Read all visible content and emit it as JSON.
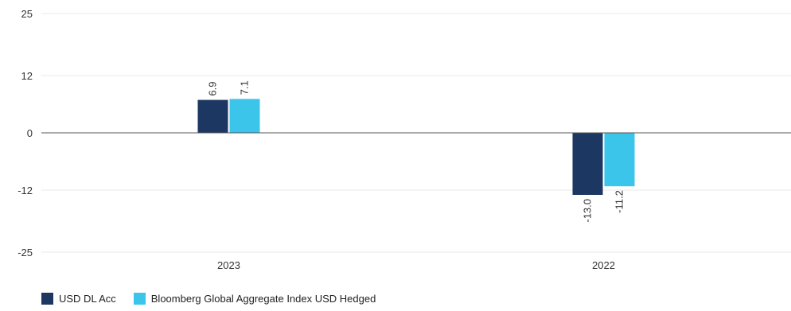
{
  "chart_data": {
    "type": "bar",
    "categories": [
      "2023",
      "2022"
    ],
    "series": [
      {
        "name": "USD DL Acc",
        "values": [
          6.9,
          -13.0
        ],
        "labels": [
          "6.9",
          "-13.0"
        ],
        "color": "#1b3762"
      },
      {
        "name": "Bloomberg Global Aggregate Index USD Hedged",
        "values": [
          7.1,
          -11.2
        ],
        "labels": [
          "7.1",
          "-11.2"
        ],
        "color": "#3bc5ea"
      }
    ],
    "yticks": [
      25,
      12,
      0,
      -12,
      -25
    ],
    "ylim": [
      -25,
      25
    ],
    "grid": true,
    "legend_position": "bottom-left",
    "title": "",
    "xlabel": "",
    "ylabel": ""
  }
}
